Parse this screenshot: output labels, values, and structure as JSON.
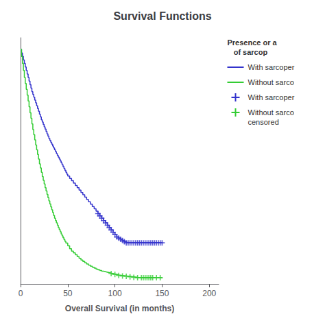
{
  "chart_data": {
    "type": "line",
    "title": "Survival Functions",
    "xlabel": "Overall Survival (in months)",
    "xlim": [
      0,
      210
    ],
    "ylim": [
      0,
      1.05
    ],
    "xticks": [
      0,
      50,
      100,
      150,
      200
    ],
    "yticks": [],
    "tick_labels": "x",
    "grid": false,
    "legend": "right",
    "legend_title": "Presence or a\n   of sarcop",
    "series": [
      {
        "name": "With sarcoper",
        "type": "line",
        "line_style": "step",
        "color": "#3333cc",
        "x": [
          0,
          1,
          2,
          3,
          4,
          5,
          6,
          7,
          8,
          9,
          10,
          11,
          12,
          13,
          14,
          15,
          16,
          17,
          18,
          19,
          20,
          21,
          22,
          23,
          24,
          25,
          26,
          27,
          28,
          29,
          30,
          31,
          32,
          33,
          34,
          35,
          36,
          37,
          38,
          39,
          40,
          41,
          42,
          43,
          44,
          45,
          46,
          47,
          48,
          49,
          50,
          52,
          54,
          56,
          58,
          60,
          62,
          64,
          66,
          68,
          70,
          72,
          74,
          76,
          78,
          80,
          82,
          84,
          86,
          88,
          90,
          92,
          94,
          96,
          98,
          100,
          102,
          104,
          106,
          108,
          110,
          112,
          114,
          116,
          118,
          120,
          122,
          124,
          126,
          128,
          130,
          132,
          134,
          136,
          138,
          140,
          142,
          144,
          146,
          148,
          150
        ],
        "values": [
          1.0,
          0.985,
          0.97,
          0.955,
          0.94,
          0.925,
          0.91,
          0.895,
          0.88,
          0.865,
          0.85,
          0.835,
          0.82,
          0.808,
          0.796,
          0.784,
          0.772,
          0.76,
          0.748,
          0.736,
          0.724,
          0.712,
          0.7,
          0.69,
          0.68,
          0.67,
          0.66,
          0.65,
          0.64,
          0.63,
          0.62,
          0.612,
          0.604,
          0.596,
          0.588,
          0.58,
          0.572,
          0.564,
          0.556,
          0.548,
          0.54,
          0.532,
          0.524,
          0.516,
          0.508,
          0.5,
          0.492,
          0.484,
          0.476,
          0.468,
          0.46,
          0.45,
          0.44,
          0.43,
          0.42,
          0.41,
          0.4,
          0.39,
          0.38,
          0.37,
          0.36,
          0.35,
          0.34,
          0.33,
          0.32,
          0.31,
          0.3,
          0.29,
          0.28,
          0.27,
          0.26,
          0.25,
          0.24,
          0.23,
          0.22,
          0.21,
          0.2,
          0.195,
          0.19,
          0.185,
          0.18,
          0.175,
          0.175,
          0.175,
          0.175,
          0.175,
          0.175,
          0.175,
          0.175,
          0.175,
          0.175,
          0.175,
          0.175,
          0.175,
          0.175,
          0.175,
          0.175,
          0.175,
          0.175,
          0.175,
          0.175
        ]
      },
      {
        "name": "Without sarco",
        "type": "line",
        "line_style": "step",
        "color": "#33cc33",
        "x": [
          0,
          1,
          2,
          3,
          4,
          5,
          6,
          7,
          8,
          9,
          10,
          11,
          12,
          13,
          14,
          15,
          16,
          17,
          18,
          19,
          20,
          21,
          22,
          23,
          24,
          25,
          26,
          27,
          28,
          29,
          30,
          31,
          32,
          33,
          34,
          35,
          36,
          37,
          38,
          39,
          40,
          41,
          42,
          43,
          44,
          45,
          46,
          47,
          48,
          50,
          52,
          54,
          56,
          58,
          60,
          62,
          64,
          66,
          68,
          70,
          72,
          74,
          76,
          78,
          80,
          82,
          84,
          86,
          88,
          90,
          92,
          94,
          96,
          98,
          100,
          102,
          104,
          108,
          112,
          116,
          120,
          124,
          126,
          128,
          130,
          132,
          134,
          136,
          138,
          140,
          142,
          144,
          146,
          148,
          150
        ],
        "values": [
          1.0,
          0.97,
          0.94,
          0.91,
          0.88,
          0.855,
          0.83,
          0.805,
          0.78,
          0.755,
          0.73,
          0.706,
          0.682,
          0.658,
          0.636,
          0.614,
          0.592,
          0.572,
          0.552,
          0.532,
          0.512,
          0.494,
          0.476,
          0.458,
          0.442,
          0.426,
          0.41,
          0.396,
          0.382,
          0.368,
          0.354,
          0.341,
          0.328,
          0.316,
          0.304,
          0.292,
          0.28,
          0.27,
          0.26,
          0.25,
          0.24,
          0.231,
          0.222,
          0.213,
          0.205,
          0.197,
          0.189,
          0.181,
          0.174,
          0.162,
          0.15,
          0.14,
          0.132,
          0.124,
          0.116,
          0.109,
          0.102,
          0.096,
          0.09,
          0.085,
          0.08,
          0.075,
          0.071,
          0.067,
          0.063,
          0.06,
          0.057,
          0.054,
          0.052,
          0.05,
          0.048,
          0.046,
          0.044,
          0.042,
          0.04,
          0.038,
          0.036,
          0.034,
          0.032,
          0.03,
          0.028,
          0.026,
          0.026,
          0.026,
          0.026,
          0.026,
          0.026,
          0.026,
          0.026,
          0.026,
          0.026,
          0.026,
          0.026,
          0.026,
          0.026
        ]
      },
      {
        "name": "With sarcoper",
        "type": "scatter",
        "marker": "+",
        "color": "#3333cc",
        "x": [
          82,
          84,
          86,
          88,
          90,
          92,
          94,
          96,
          98,
          100,
          102,
          104,
          106,
          108,
          110,
          112,
          114,
          116,
          118,
          120,
          122,
          124,
          126,
          128,
          130,
          132,
          134,
          136,
          138,
          140,
          142,
          144,
          146,
          148,
          150
        ],
        "values": [
          0.3,
          0.29,
          0.28,
          0.27,
          0.26,
          0.25,
          0.24,
          0.23,
          0.22,
          0.21,
          0.2,
          0.195,
          0.19,
          0.185,
          0.18,
          0.175,
          0.175,
          0.175,
          0.175,
          0.175,
          0.175,
          0.175,
          0.175,
          0.175,
          0.175,
          0.175,
          0.175,
          0.175,
          0.175,
          0.175,
          0.175,
          0.175,
          0.175,
          0.175,
          0.175
        ]
      },
      {
        "name": "Without sarco\ncensored",
        "type": "scatter",
        "marker": "+",
        "color": "#33cc33",
        "x": [
          96,
          100,
          104,
          108,
          112,
          116,
          120,
          124,
          128,
          130,
          132,
          134,
          136,
          138,
          140,
          144,
          148
        ],
        "values": [
          0.044,
          0.04,
          0.036,
          0.034,
          0.032,
          0.03,
          0.028,
          0.026,
          0.026,
          0.026,
          0.026,
          0.026,
          0.026,
          0.026,
          0.026,
          0.026,
          0.026
        ]
      }
    ]
  }
}
